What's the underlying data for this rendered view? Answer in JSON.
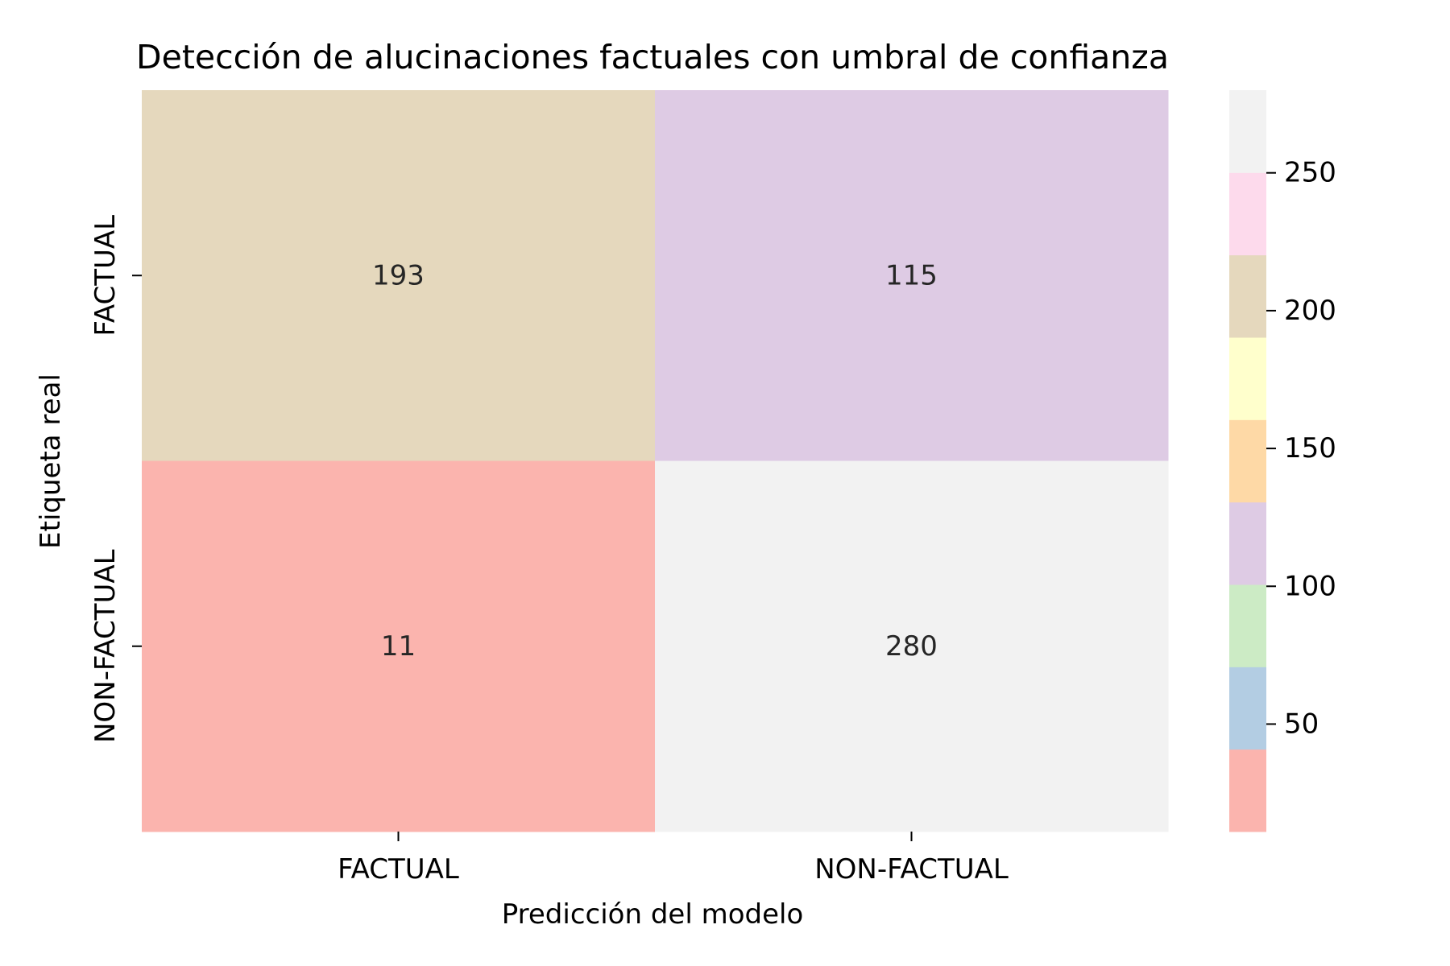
{
  "chart_data": {
    "type": "heatmap",
    "title": "Detección de alucinaciones factuales con umbral de confianza",
    "xlabel": "Predicción del modelo",
    "ylabel": "Etiqueta real",
    "x_categories": [
      "FACTUAL",
      "NON-FACTUAL"
    ],
    "y_categories": [
      "FACTUAL",
      "NON-FACTUAL"
    ],
    "values": [
      [
        193,
        115
      ],
      [
        11,
        280
      ]
    ],
    "colorbar": {
      "range": [
        11,
        280
      ],
      "ticks": [
        "50",
        "100",
        "150",
        "200",
        "250"
      ],
      "tick_values": [
        50,
        100,
        150,
        200,
        250
      ],
      "colormap": "Pastel1",
      "colors": [
        "#fbb4ae",
        "#b3cde3",
        "#ccebc5",
        "#decbe4",
        "#fed9a6",
        "#ffffcc",
        "#e5d8bd",
        "#fddaec",
        "#f2f2f2"
      ]
    },
    "grid": false
  }
}
